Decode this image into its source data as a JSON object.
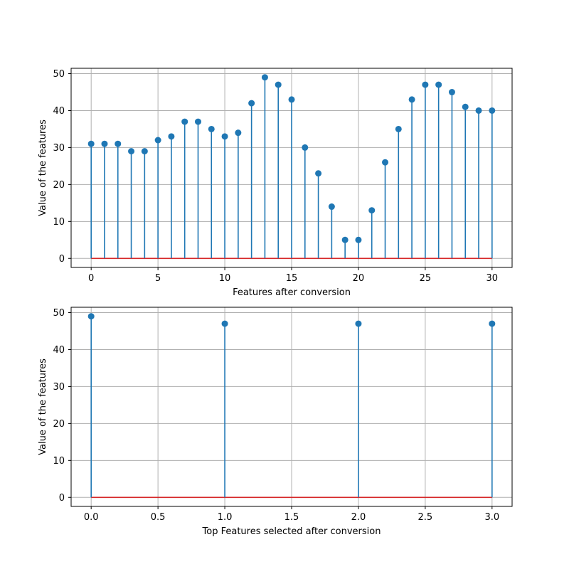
{
  "figure": {
    "background": "#ffffff"
  },
  "chart_data": [
    {
      "type": "stem",
      "xlabel": "Features  after conversion",
      "ylabel": "Value of the features",
      "xlim": [
        -1.5,
        31.5
      ],
      "ylim": [
        -2.45,
        51.45
      ],
      "xticks": [
        0,
        5,
        10,
        15,
        20,
        25,
        30
      ],
      "yticks": [
        0,
        10,
        20,
        30,
        40,
        50
      ],
      "grid": true,
      "stem_color": "#1f77b4",
      "marker_color": "#1f77b4",
      "baseline_color": "#d62728",
      "x": [
        0,
        1,
        2,
        3,
        4,
        5,
        6,
        7,
        8,
        9,
        10,
        11,
        12,
        13,
        14,
        15,
        16,
        17,
        18,
        19,
        20,
        21,
        22,
        23,
        24,
        25,
        26,
        27,
        28,
        29,
        30
      ],
      "y": [
        31,
        31,
        31,
        29,
        29,
        32,
        33,
        37,
        37,
        35,
        33,
        34,
        42,
        49,
        47,
        43,
        30,
        23,
        14,
        5,
        5,
        13,
        26,
        35,
        43,
        47,
        47,
        45,
        41,
        40,
        40
      ]
    },
    {
      "type": "stem",
      "xlabel": "Top Features selected after conversion",
      "ylabel": "Value of the features",
      "xlim": [
        -0.15,
        3.15
      ],
      "ylim": [
        -2.45,
        51.45
      ],
      "xticks": [
        0.0,
        0.5,
        1.0,
        1.5,
        2.0,
        2.5,
        3.0
      ],
      "yticks": [
        0,
        10,
        20,
        30,
        40,
        50
      ],
      "grid": true,
      "stem_color": "#1f77b4",
      "marker_color": "#1f77b4",
      "baseline_color": "#d62728",
      "x": [
        0,
        1,
        2,
        3
      ],
      "y": [
        49,
        47,
        47,
        47
      ]
    }
  ]
}
